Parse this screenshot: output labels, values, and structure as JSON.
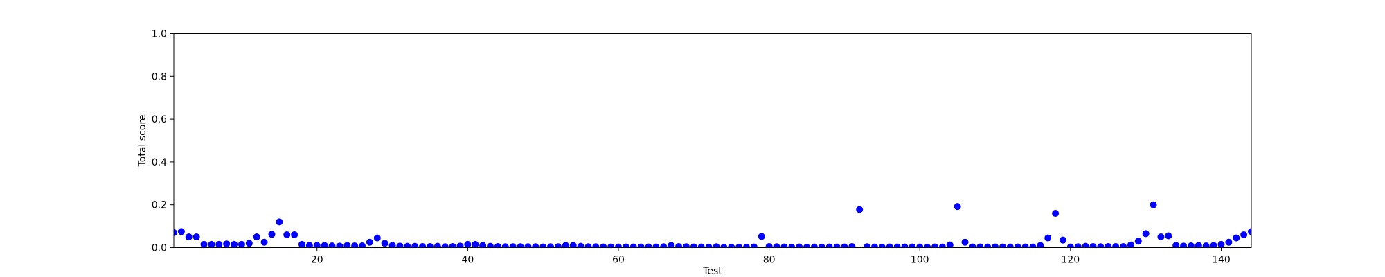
{
  "chart_data": {
    "type": "scatter",
    "title": "",
    "xlabel": "Test",
    "ylabel": "Total score",
    "xlim": [
      1,
      144
    ],
    "ylim": [
      0,
      1.0
    ],
    "xticks": [
      20,
      40,
      60,
      80,
      100,
      120,
      140
    ],
    "yticks": [
      0.0,
      0.2,
      0.4,
      0.6,
      0.8,
      1.0
    ],
    "ytick_labels": [
      "0.0",
      "0.2",
      "0.4",
      "0.6",
      "0.8",
      "1.0"
    ],
    "grid": false,
    "color": "#0000ff",
    "series": [
      {
        "x": [
          1,
          2,
          3,
          4,
          5,
          6,
          7,
          8,
          9,
          10,
          11,
          12,
          13,
          14,
          15,
          16,
          17,
          18,
          19,
          20,
          21,
          22,
          23,
          24,
          25,
          26,
          27,
          28,
          29,
          30,
          31,
          32,
          33,
          34,
          35,
          36,
          37,
          38,
          39,
          40,
          41,
          42,
          43,
          44,
          45,
          46,
          47,
          48,
          49,
          50,
          51,
          52,
          53,
          54,
          55,
          56,
          57,
          58,
          59,
          60,
          61,
          62,
          63,
          64,
          65,
          66,
          67,
          68,
          69,
          70,
          71,
          72,
          73,
          74,
          75,
          76,
          77,
          78,
          79,
          80,
          81,
          82,
          83,
          84,
          85,
          86,
          87,
          88,
          89,
          90,
          91,
          92,
          93,
          94,
          95,
          96,
          97,
          98,
          99,
          100,
          101,
          102,
          103,
          104,
          105,
          106,
          107,
          108,
          109,
          110,
          111,
          112,
          113,
          114,
          115,
          116,
          117,
          118,
          119,
          120,
          121,
          122,
          123,
          124,
          125,
          126,
          127,
          128,
          129,
          130,
          131,
          132,
          133,
          134,
          135,
          136,
          137,
          138,
          139,
          140,
          141,
          142,
          143,
          144
        ],
        "values": [
          0.07,
          0.075,
          0.05,
          0.05,
          0.015,
          0.015,
          0.015,
          0.017,
          0.015,
          0.015,
          0.02,
          0.05,
          0.025,
          0.062,
          0.12,
          0.06,
          0.06,
          0.015,
          0.01,
          0.01,
          0.01,
          0.008,
          0.007,
          0.01,
          0.008,
          0.008,
          0.025,
          0.045,
          0.02,
          0.01,
          0.007,
          0.006,
          0.006,
          0.005,
          0.005,
          0.006,
          0.004,
          0.005,
          0.007,
          0.015,
          0.015,
          0.01,
          0.006,
          0.005,
          0.004,
          0.004,
          0.004,
          0.004,
          0.004,
          0.003,
          0.004,
          0.004,
          0.01,
          0.01,
          0.006,
          0.004,
          0.004,
          0.003,
          0.003,
          0.003,
          0.003,
          0.003,
          0.003,
          0.003,
          0.003,
          0.004,
          0.01,
          0.005,
          0.004,
          0.003,
          0.003,
          0.002,
          0.004,
          0.002,
          0.002,
          0.002,
          0.002,
          0.003,
          0.052,
          0.005,
          0.004,
          0.003,
          0.002,
          0.003,
          0.002,
          0.003,
          0.002,
          0.003,
          0.003,
          0.003,
          0.005,
          0.178,
          0.004,
          0.003,
          0.002,
          0.003,
          0.003,
          0.003,
          0.003,
          0.003,
          0.002,
          0.003,
          0.003,
          0.012,
          0.192,
          0.025,
          0.003,
          0.003,
          0.003,
          0.003,
          0.003,
          0.003,
          0.003,
          0.003,
          0.003,
          0.01,
          0.045,
          0.16,
          0.035,
          0.003,
          0.004,
          0.006,
          0.005,
          0.004,
          0.005,
          0.005,
          0.005,
          0.012,
          0.03,
          0.065,
          0.2,
          0.05,
          0.055,
          0.01,
          0.007,
          0.008,
          0.01,
          0.008,
          0.01,
          0.015,
          0.025,
          0.045,
          0.06,
          0.075
        ]
      }
    ]
  }
}
